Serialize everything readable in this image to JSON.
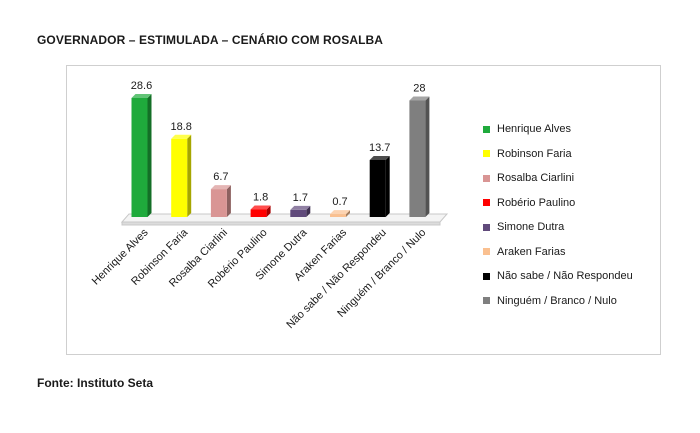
{
  "header": {
    "title": "GOVERNADOR – ESTIMULADA – CENÁRIO COM ROSALBA"
  },
  "footer": {
    "source": "Fonte: Instituto Seta"
  },
  "chart_data": {
    "type": "bar",
    "title": "GOVERNADOR – ESTIMULADA – CENÁRIO COM ROSALBA",
    "xlabel": "",
    "ylabel": "",
    "ylim": [
      0,
      30
    ],
    "grid": false,
    "legend_position": "right",
    "categories": [
      "Henrique Alves",
      "Robinson Faria",
      "Rosalba Ciarlini",
      "Robério Paulino",
      "Simone Dutra",
      "Araken Farias",
      "Não sabe / Não Respondeu",
      "Ninguém / Branco / Nulo"
    ],
    "values": [
      28.6,
      18.8,
      6.7,
      1.8,
      1.7,
      0.7,
      13.7,
      28
    ],
    "value_labels": [
      "28.6",
      "18.8",
      "6.7",
      "1.8",
      "1.7",
      "0.7",
      "13.7",
      "28"
    ],
    "colors": [
      "#1faa3c",
      "#ffff00",
      "#d99594",
      "#ff0000",
      "#604a7b",
      "#fac090",
      "#000000",
      "#7f7f7f"
    ],
    "legend": [
      "Henrique Alves",
      "Robinson Faria",
      "Rosalba Ciarlini",
      "Robério Paulino",
      "Simone Dutra",
      "Araken Farias",
      "Não sabe / Não Respondeu",
      "Ninguém / Branco / Nulo"
    ]
  }
}
